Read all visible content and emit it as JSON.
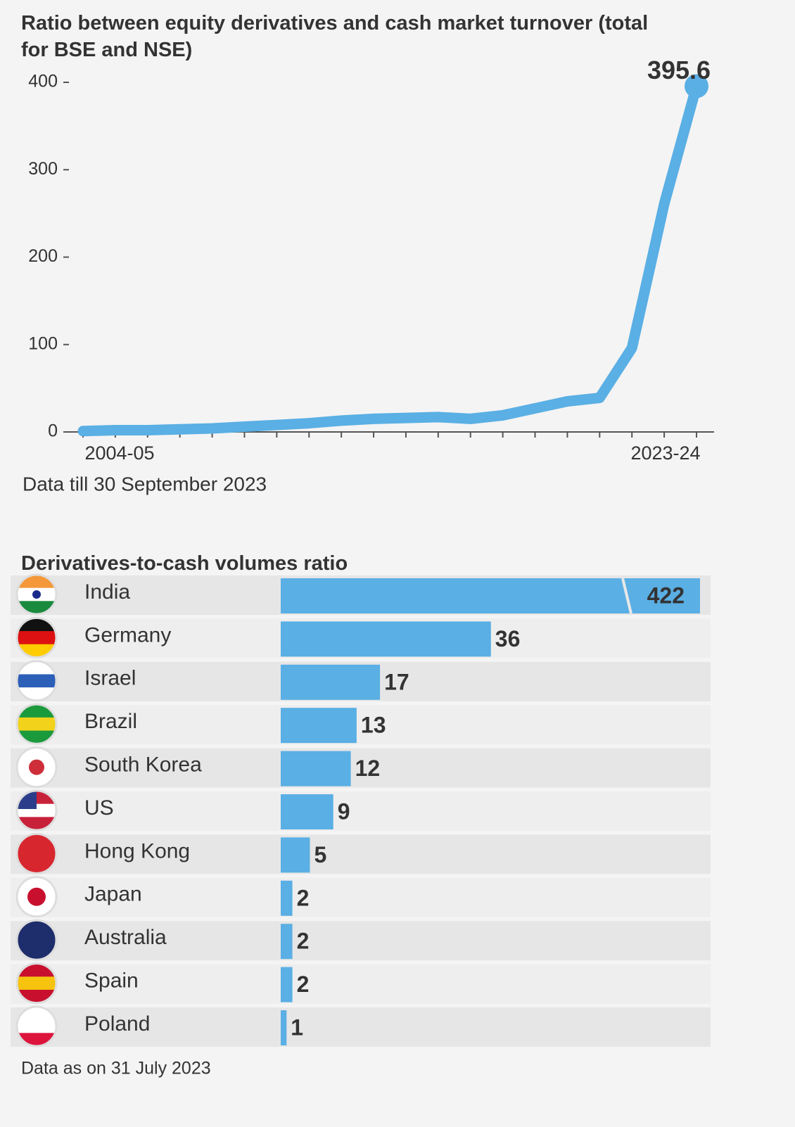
{
  "chart_data": [
    {
      "type": "line",
      "title": "Ratio between equity derivatives and cash market turnover (total for BSE and NSE)",
      "categories": [
        "2004-05",
        null,
        null,
        null,
        null,
        null,
        null,
        null,
        null,
        null,
        null,
        null,
        null,
        null,
        null,
        null,
        null,
        null,
        null,
        "2023-24"
      ],
      "values": [
        1,
        2,
        2,
        3,
        4,
        6,
        8,
        10,
        13,
        15,
        16,
        17,
        15,
        19,
        27,
        35,
        39,
        96,
        261,
        395.6
      ],
      "color": "#5aafe4",
      "ylim": [
        0,
        400
      ],
      "yticks": [
        0,
        100,
        200,
        300,
        400
      ],
      "annotation": "Data till 30 September 2023"
    },
    {
      "type": "hbar",
      "title": "Derivatives-to-cash volumes ratio",
      "categories": [
        "India",
        "Germany",
        "Israel",
        "Brazil",
        "South Korea",
        "US",
        "Hong Kong",
        "Japan",
        "Australia",
        "Spain",
        "Poland"
      ],
      "values": [
        422,
        36,
        17,
        13,
        12,
        9,
        5,
        2,
        2,
        2,
        1
      ],
      "color": "#5aafe4",
      "annotation": "Data as on 31 July 2023"
    }
  ]
}
